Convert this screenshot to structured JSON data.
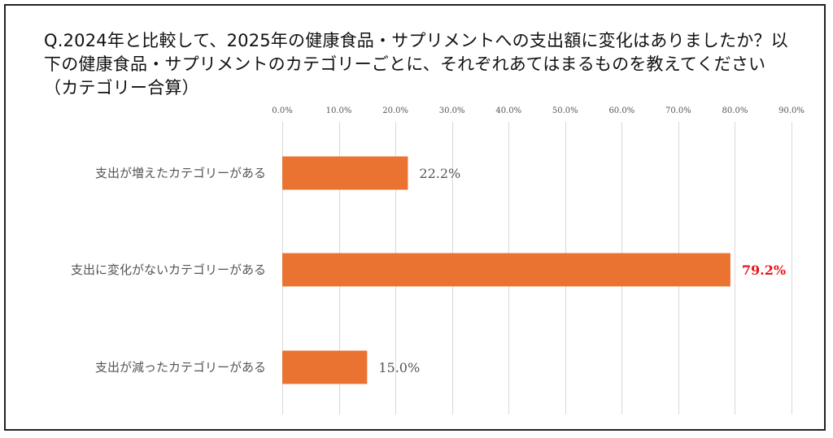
{
  "chart_data": {
    "type": "bar",
    "orientation": "horizontal",
    "title": "Q.2024年と比較して、2025年の健康食品・サプリメントへの支出額に変化はありましたか？以下の健康食品・サプリメントのカテゴリーごとに、それぞれあてはまるものを教えてください（カテゴリー合算）",
    "categories": [
      "支出が増えたカテゴリーがある",
      "支出に変化がないカテゴリーがある",
      "支出が減ったカテゴリーがある"
    ],
    "values": [
      22.2,
      79.2,
      15.0
    ],
    "data_labels": [
      "22.2%",
      "79.2%",
      "15.0%"
    ],
    "highlight_index": 1,
    "xlim": [
      0,
      90
    ],
    "x_ticks": [
      0,
      10,
      20,
      30,
      40,
      50,
      60,
      70,
      80,
      90
    ],
    "x_tick_labels": [
      "0.0%",
      "10.0%",
      "20.0%",
      "30.0%",
      "40.0%",
      "50.0%",
      "60.0%",
      "70.0%",
      "80.0%",
      "90.0%"
    ],
    "x_axis_position": "top",
    "grid": true,
    "legend": "none",
    "xlabel": "",
    "ylabel": ""
  },
  "colors": {
    "bar": "#ea7331",
    "highlight_label": "#e8151b",
    "grid": "#d9d9d9",
    "text": "#555555",
    "border": "#222222"
  }
}
